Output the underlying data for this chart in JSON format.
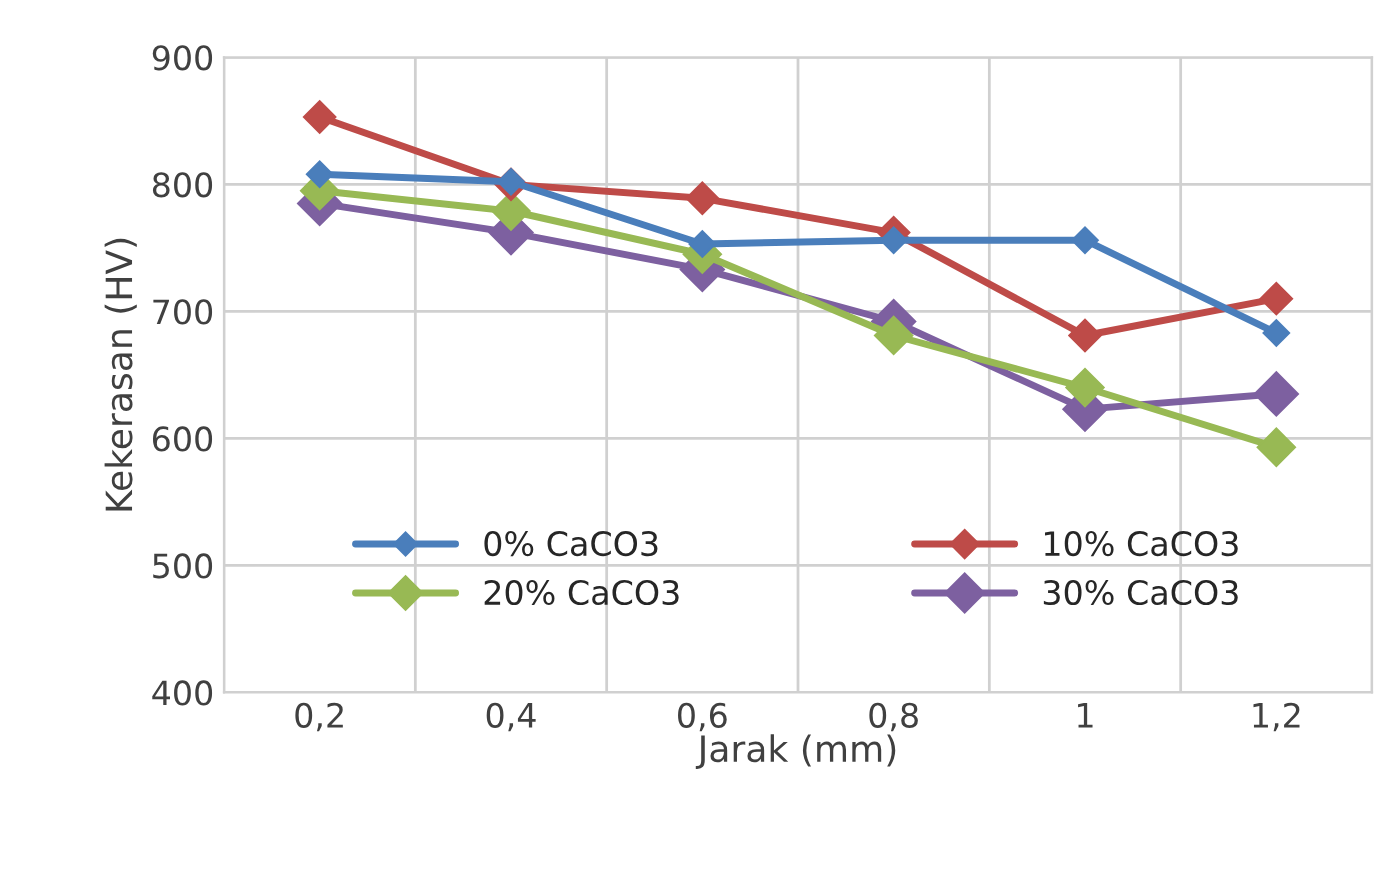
{
  "chart_data": {
    "type": "line",
    "xlabel": "Jarak (mm)",
    "ylabel": "Kekerasan (HV)",
    "categories": [
      "0,2",
      "0,4",
      "0,6",
      "0,8",
      "1",
      "1,2"
    ],
    "series": [
      {
        "name": "0% CaCO3",
        "color": "#4a7ebb",
        "values": [
          808,
          802,
          753,
          756,
          756,
          683
        ]
      },
      {
        "name": "10% CaCO3",
        "color": "#be4b48",
        "values": [
          853,
          800,
          789,
          762,
          681,
          710
        ]
      },
      {
        "name": "20% CaCO3",
        "color": "#98b954",
        "values": [
          795,
          779,
          745,
          681,
          640,
          593
        ]
      },
      {
        "name": "30% CaCO3",
        "color": "#7d60a0",
        "values": [
          785,
          762,
          733,
          692,
          623,
          635
        ]
      }
    ],
    "ylim": [
      400,
      900
    ],
    "yticks": [
      400,
      500,
      600,
      700,
      800,
      900
    ],
    "grid": true,
    "legend": "bottom",
    "marker": "diamond",
    "line_style": "solid"
  }
}
